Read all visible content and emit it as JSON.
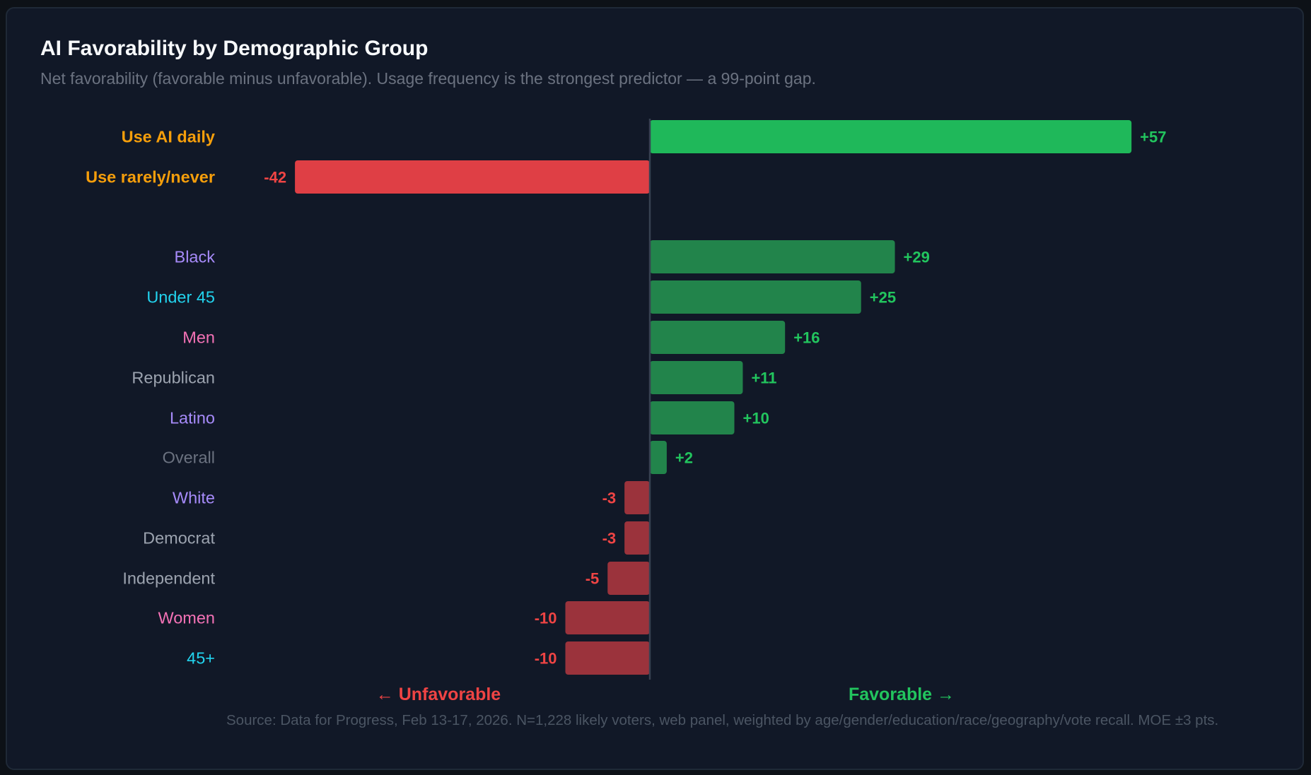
{
  "title": "AI Favorability by Demographic Group",
  "subtitle": "Net favorability (favorable minus unfavorable). Usage frequency is the strongest predictor — a 99-point gap.",
  "source": "Source: Data for Progress, Feb 13-17, 2026. N=1,228 likely voters, web panel, weighted by age/gender/education/race/geography/vote recall. MOE ±3 pts.",
  "colors": {
    "positive_strong": "#1fb85a",
    "negative_strong": "#df3f45",
    "positive": "#22844b",
    "negative": "#9b333c",
    "positive_text": "#22c55e",
    "negative_text": "#ef4444",
    "usage": "#f59e0b",
    "race": "#a78bfa",
    "age": "#22d3ee",
    "gender": "#f472b6",
    "party": "#9ca3af",
    "overall": "#6b7280"
  },
  "chart_data": {
    "type": "bar",
    "orientation": "horizontal",
    "xlim": [
      -60,
      68
    ],
    "xlabel_negative": "← Unfavorable",
    "xlabel_positive": "Favorable →",
    "categories": [
      "Use AI daily",
      "Use rarely/never",
      "Black",
      "Under 45",
      "Men",
      "Republican",
      "Latino",
      "Overall",
      "White",
      "Democrat",
      "Independent",
      "Women",
      "45+"
    ],
    "values": [
      57,
      -42,
      29,
      25,
      16,
      11,
      10,
      2,
      -3,
      -3,
      -5,
      -10,
      -10
    ],
    "value_labels": [
      "+57",
      "-42",
      "+29",
      "+25",
      "+16",
      "+11",
      "+10",
      "+2",
      "-3",
      "-3",
      "-5",
      "-10",
      "-10"
    ],
    "groups": [
      "usage",
      "usage",
      "race",
      "age",
      "gender",
      "party",
      "race",
      "overall",
      "race",
      "party",
      "party",
      "gender",
      "age"
    ],
    "highlighted": [
      true,
      true,
      false,
      false,
      false,
      false,
      false,
      false,
      false,
      false,
      false,
      false,
      false
    ]
  }
}
